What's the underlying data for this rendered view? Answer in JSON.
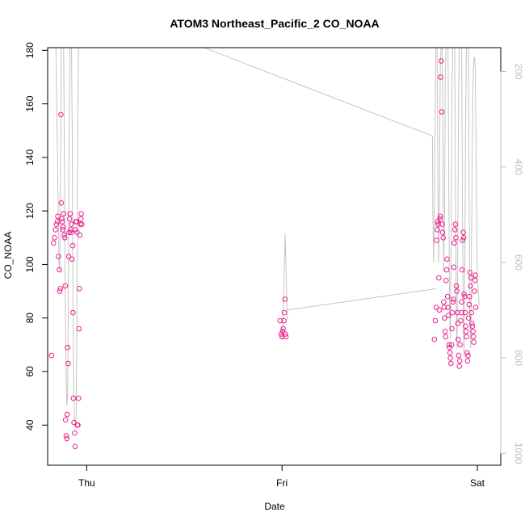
{
  "chart_data": {
    "type": "scatter",
    "title": "ATOM3 Northeast_Pacific_2 CO_NOAA",
    "xlabel": "Date",
    "ylabel": "CO_NOAA",
    "x_ticks": [
      {
        "label": "Thu",
        "day": 0
      },
      {
        "label": "Fri",
        "day": 1
      },
      {
        "label": "Sat",
        "day": 2
      }
    ],
    "xlim": [
      -0.2,
      2.12
    ],
    "ylim": [
      25,
      181
    ],
    "y_ticks": [
      40,
      60,
      80,
      100,
      120,
      140,
      160,
      180
    ],
    "y2_ticks": [
      200,
      400,
      600,
      800,
      1000
    ],
    "y2lim": [
      1025,
      150
    ],
    "grid": false,
    "colors": {
      "points": "#ee1e8c",
      "pressure_line": "#c4c4c4",
      "right_axis": "#bdbdbd"
    },
    "series": [
      {
        "values": [
          [
            -0.18,
            66
          ],
          [
            -0.17,
            108
          ],
          [
            -0.165,
            110
          ],
          [
            -0.16,
            113
          ],
          [
            -0.155,
            115
          ],
          [
            -0.15,
            116
          ],
          [
            -0.148,
            118
          ],
          [
            -0.145,
            103
          ],
          [
            -0.14,
            98
          ],
          [
            -0.138,
            90
          ],
          [
            -0.135,
            91
          ],
          [
            -0.132,
            156
          ],
          [
            -0.13,
            123
          ],
          [
            -0.128,
            117
          ],
          [
            -0.125,
            116
          ],
          [
            -0.122,
            113
          ],
          [
            -0.12,
            114
          ],
          [
            -0.118,
            119
          ],
          [
            -0.115,
            111
          ],
          [
            -0.112,
            110
          ],
          [
            -0.11,
            92
          ],
          [
            -0.108,
            42
          ],
          [
            -0.105,
            36
          ],
          [
            -0.102,
            35
          ],
          [
            -0.1,
            44
          ],
          [
            -0.098,
            69
          ],
          [
            -0.095,
            63
          ],
          [
            -0.092,
            103
          ],
          [
            -0.09,
            112
          ],
          [
            -0.088,
            117
          ],
          [
            -0.085,
            119
          ],
          [
            -0.082,
            113
          ],
          [
            -0.08,
            112
          ],
          [
            -0.078,
            115
          ],
          [
            -0.075,
            102
          ],
          [
            -0.072,
            107
          ],
          [
            -0.07,
            82
          ],
          [
            -0.068,
            50
          ],
          [
            -0.065,
            41
          ],
          [
            -0.062,
            37
          ],
          [
            -0.06,
            32
          ],
          [
            -0.058,
            113
          ],
          [
            -0.055,
            116
          ],
          [
            -0.052,
            116
          ],
          [
            -0.05,
            112
          ],
          [
            -0.048,
            40
          ],
          [
            -0.045,
            40
          ],
          [
            -0.042,
            50
          ],
          [
            -0.04,
            76
          ],
          [
            -0.038,
            91
          ],
          [
            -0.035,
            111
          ],
          [
            -0.032,
            115
          ],
          [
            -0.03,
            117
          ],
          [
            -0.028,
            119
          ],
          [
            -0.025,
            115
          ],
          [
            0.99,
            79
          ],
          [
            0.995,
            74
          ],
          [
            1.0,
            73
          ],
          [
            1.003,
            75
          ],
          [
            1.006,
            76
          ],
          [
            1.01,
            79
          ],
          [
            1.012,
            82
          ],
          [
            1.015,
            87
          ],
          [
            1.017,
            74
          ],
          [
            1.02,
            73
          ],
          [
            1.78,
            72
          ],
          [
            1.785,
            79
          ],
          [
            1.79,
            84
          ],
          [
            1.792,
            109
          ],
          [
            1.795,
            113
          ],
          [
            1.797,
            116
          ],
          [
            1.8,
            115
          ],
          [
            1.803,
            95
          ],
          [
            1.805,
            83
          ],
          [
            1.808,
            117
          ],
          [
            1.81,
            118
          ],
          [
            1.812,
            170
          ],
          [
            1.815,
            176
          ],
          [
            1.818,
            157
          ],
          [
            1.82,
            115
          ],
          [
            1.822,
            112
          ],
          [
            1.825,
            110
          ],
          [
            1.828,
            86
          ],
          [
            1.83,
            84
          ],
          [
            1.832,
            80
          ],
          [
            1.835,
            75
          ],
          [
            1.838,
            73
          ],
          [
            1.84,
            94
          ],
          [
            1.843,
            98
          ],
          [
            1.845,
            102
          ],
          [
            1.848,
            88
          ],
          [
            1.85,
            84
          ],
          [
            1.852,
            81
          ],
          [
            1.855,
            70
          ],
          [
            1.858,
            69
          ],
          [
            1.86,
            67
          ],
          [
            1.862,
            65
          ],
          [
            1.865,
            63
          ],
          [
            1.868,
            70
          ],
          [
            1.87,
            76
          ],
          [
            1.872,
            82
          ],
          [
            1.875,
            86
          ],
          [
            1.878,
            87
          ],
          [
            1.88,
            99
          ],
          [
            1.882,
            108
          ],
          [
            1.885,
            113
          ],
          [
            1.888,
            115
          ],
          [
            1.89,
            110
          ],
          [
            1.893,
            92
          ],
          [
            1.895,
            90
          ],
          [
            1.898,
            82
          ],
          [
            1.9,
            78
          ],
          [
            1.902,
            72
          ],
          [
            1.905,
            66
          ],
          [
            1.908,
            62
          ],
          [
            1.91,
            64
          ],
          [
            1.912,
            70
          ],
          [
            1.915,
            79
          ],
          [
            1.918,
            82
          ],
          [
            1.92,
            86
          ],
          [
            1.922,
            98
          ],
          [
            1.925,
            109
          ],
          [
            1.928,
            112
          ],
          [
            1.93,
            110
          ],
          [
            1.932,
            89
          ],
          [
            1.935,
            88
          ],
          [
            1.938,
            82
          ],
          [
            1.94,
            77
          ],
          [
            1.942,
            75
          ],
          [
            1.945,
            73
          ],
          [
            1.948,
            67
          ],
          [
            1.95,
            64
          ],
          [
            1.952,
            66
          ],
          [
            1.955,
            80
          ],
          [
            1.958,
            85
          ],
          [
            1.96,
            88
          ],
          [
            1.962,
            97
          ],
          [
            1.965,
            92
          ],
          [
            1.968,
            95
          ],
          [
            1.97,
            82
          ],
          [
            1.972,
            78
          ],
          [
            1.975,
            77
          ],
          [
            1.978,
            75
          ],
          [
            1.98,
            73
          ],
          [
            1.982,
            71
          ],
          [
            1.985,
            90
          ],
          [
            1.988,
            94
          ],
          [
            1.99,
            96
          ],
          [
            1.992,
            84
          ]
        ]
      },
      {
        "axis": "right",
        "values": [
          [
            -0.158,
            150
          ],
          [
            -0.152,
            300
          ],
          [
            -0.146,
            500
          ],
          [
            -0.142,
            600
          ],
          [
            -0.138,
            620
          ],
          [
            -0.134,
            420
          ],
          [
            -0.13,
            150
          ],
          [
            -0.126,
            150
          ],
          [
            -0.118,
            150
          ],
          [
            -0.114,
            400
          ],
          [
            -0.11,
            680
          ],
          [
            -0.106,
            820
          ],
          [
            -0.102,
            900
          ],
          [
            -0.098,
            880
          ],
          [
            -0.094,
            700
          ],
          [
            -0.09,
            300
          ],
          [
            -0.086,
            150
          ],
          [
            -0.078,
            150
          ],
          [
            -0.074,
            350
          ],
          [
            -0.07,
            700
          ],
          [
            -0.066,
            880
          ],
          [
            -0.062,
            930
          ],
          [
            -0.058,
            940
          ],
          [
            -0.054,
            920
          ],
          [
            -0.05,
            700
          ],
          [
            -0.046,
            300
          ],
          [
            -0.042,
            150
          ],
          [
            -0.02,
            150
          ],
          [
            0.6,
            150
          ],
          [
            1.77,
            335
          ],
          [
            1.772,
            480
          ],
          [
            1.776,
            600
          ],
          [
            1.78,
            520
          ],
          [
            1.784,
            300
          ],
          [
            1.788,
            150
          ],
          [
            1.794,
            150
          ],
          [
            1.798,
            420
          ],
          [
            1.802,
            600
          ],
          [
            1.806,
            450
          ],
          [
            1.81,
            200
          ],
          [
            1.814,
            150
          ],
          [
            1.82,
            150
          ],
          [
            1.824,
            380
          ],
          [
            1.828,
            620
          ],
          [
            1.832,
            500
          ],
          [
            1.836,
            200
          ],
          [
            1.84,
            150
          ],
          [
            1.85,
            150
          ],
          [
            1.854,
            450
          ],
          [
            1.858,
            700
          ],
          [
            1.862,
            760
          ],
          [
            1.866,
            540
          ],
          [
            1.87,
            250
          ],
          [
            1.874,
            150
          ],
          [
            1.884,
            150
          ],
          [
            1.888,
            450
          ],
          [
            1.892,
            700
          ],
          [
            1.896,
            780
          ],
          [
            1.9,
            560
          ],
          [
            1.904,
            250
          ],
          [
            1.908,
            150
          ],
          [
            1.92,
            150
          ],
          [
            1.924,
            480
          ],
          [
            1.928,
            720
          ],
          [
            1.932,
            800
          ],
          [
            1.936,
            600
          ],
          [
            1.94,
            300
          ],
          [
            1.944,
            150
          ],
          [
            1.954,
            150
          ],
          [
            1.958,
            450
          ],
          [
            1.962,
            730
          ],
          [
            1.966,
            780
          ],
          [
            1.97,
            600
          ],
          [
            1.974,
            350
          ],
          [
            1.978,
            220
          ],
          [
            1.982,
            175
          ],
          [
            1.986,
            170
          ],
          [
            1.99,
            200
          ],
          [
            1.994,
            400
          ],
          [
            1.998,
            560
          ],
          [
            2.0,
            640
          ],
          [
            2.01,
            690
          ]
        ],
        "segments": [
          [
            [
              1.0,
              760
            ],
            [
              1.003,
              730
            ],
            [
              1.006,
              700
            ],
            [
              1.01,
              650
            ],
            [
              1.013,
              590
            ],
            [
              1.016,
              540
            ],
            [
              1.02,
              600
            ],
            [
              1.024,
              680
            ],
            [
              1.028,
              720
            ]
          ],
          [
            [
              1.025,
              700
            ],
            [
              1.79,
              655
            ]
          ]
        ]
      }
    ]
  }
}
